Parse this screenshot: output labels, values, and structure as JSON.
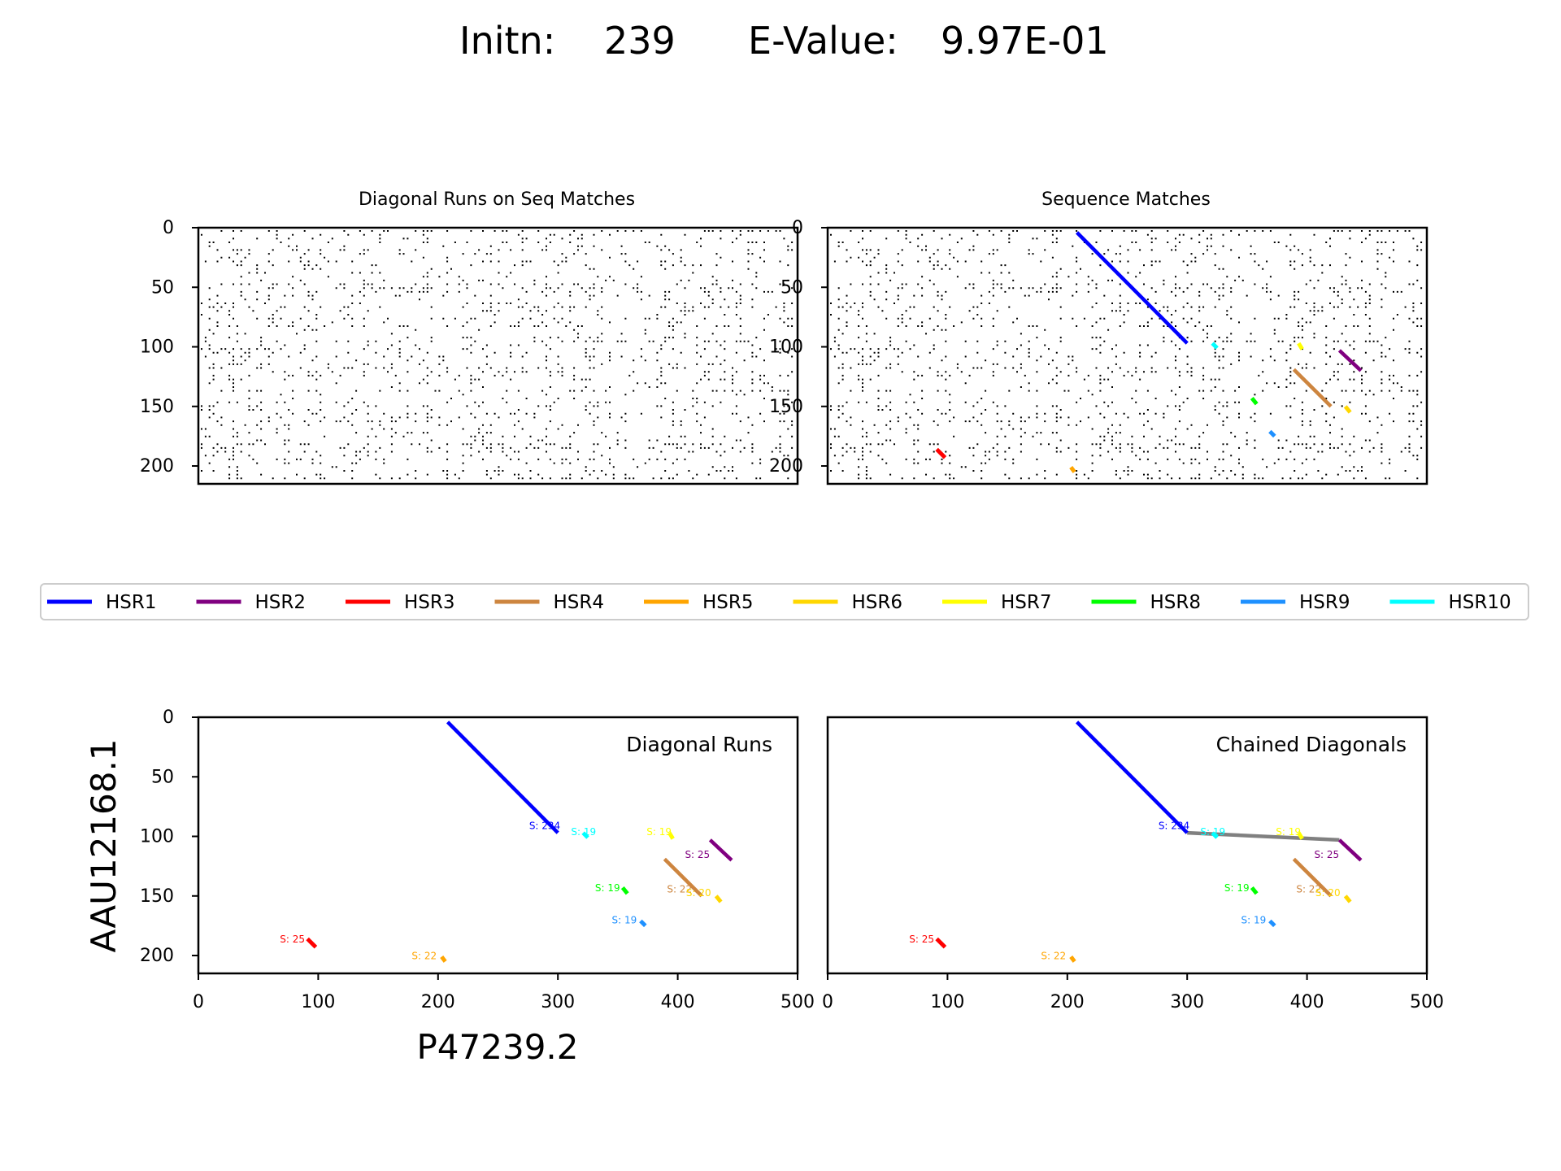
{
  "header": {
    "initn_label": "Initn:",
    "initn_value": "239",
    "evalue_label": "E-Value:",
    "evalue_value": "9.97E-01"
  },
  "colors": {
    "HSR1": "#0000ff",
    "HSR2": "#800080",
    "HSR3": "#ff0000",
    "HSR4": "#cd853f",
    "HSR5": "#ffa500",
    "HSR6": "#ffd700",
    "HSR7": "#ffff00",
    "HSR8": "#00ff00",
    "HSR9": "#1e90ff",
    "HSR10": "#00ffff",
    "chain": "#808080",
    "dots": "#000000"
  },
  "legend": [
    "HSR1",
    "HSR2",
    "HSR3",
    "HSR4",
    "HSR5",
    "HSR6",
    "HSR7",
    "HSR8",
    "HSR9",
    "HSR10"
  ],
  "chart_data": [
    {
      "id": "diag-on-seq",
      "type": "scatter",
      "title": "Diagonal Runs on Seq Matches",
      "xlim": [
        0,
        500
      ],
      "ylim": [
        215,
        0
      ],
      "yticks": [
        0,
        50,
        100,
        150,
        200
      ],
      "content": "dot matrix of sequence matches",
      "segments": []
    },
    {
      "id": "seq-matches",
      "type": "scatter",
      "title": "Sequence Matches",
      "xlim": [
        0,
        500
      ],
      "ylim": [
        215,
        0
      ],
      "yticks": [
        0,
        50,
        100,
        150,
        200
      ],
      "content": "dot matrix of sequence matches with HSR overlays",
      "segments": [
        {
          "name": "HSR1",
          "x1": 208,
          "y1": 4,
          "x2": 300,
          "y2": 97
        },
        {
          "name": "HSR2",
          "x1": 427,
          "y1": 103,
          "x2": 445,
          "y2": 120
        },
        {
          "name": "HSR3",
          "x1": 91,
          "y1": 186,
          "x2": 98,
          "y2": 193
        },
        {
          "name": "HSR4",
          "x1": 389,
          "y1": 119,
          "x2": 420,
          "y2": 150
        },
        {
          "name": "HSR5",
          "x1": 203,
          "y1": 201,
          "x2": 206,
          "y2": 205
        },
        {
          "name": "HSR6",
          "x1": 432,
          "y1": 150,
          "x2": 436,
          "y2": 155
        },
        {
          "name": "HSR7",
          "x1": 393,
          "y1": 97,
          "x2": 396,
          "y2": 102
        },
        {
          "name": "HSR8",
          "x1": 354,
          "y1": 143,
          "x2": 358,
          "y2": 148
        },
        {
          "name": "HSR9",
          "x1": 369,
          "y1": 171,
          "x2": 373,
          "y2": 175
        },
        {
          "name": "HSR10",
          "x1": 321,
          "y1": 97,
          "x2": 325,
          "y2": 101
        }
      ]
    },
    {
      "id": "diag-runs",
      "type": "line",
      "title": "Diagonal Runs",
      "xlabel": "P47239.2",
      "ylabel": "AAU12168.1",
      "xlim": [
        0,
        500
      ],
      "ylim": [
        215,
        0
      ],
      "xticks": [
        0,
        100,
        200,
        300,
        400,
        500
      ],
      "yticks": [
        0,
        50,
        100,
        150,
        200
      ],
      "segments": [
        {
          "name": "HSR1",
          "x1": 208,
          "y1": 4,
          "x2": 300,
          "y2": 97
        },
        {
          "name": "HSR2",
          "x1": 427,
          "y1": 103,
          "x2": 445,
          "y2": 120
        },
        {
          "name": "HSR3",
          "x1": 91,
          "y1": 186,
          "x2": 98,
          "y2": 193
        },
        {
          "name": "HSR4",
          "x1": 389,
          "y1": 119,
          "x2": 420,
          "y2": 150
        },
        {
          "name": "HSR5",
          "x1": 203,
          "y1": 201,
          "x2": 206,
          "y2": 205
        },
        {
          "name": "HSR6",
          "x1": 432,
          "y1": 150,
          "x2": 436,
          "y2": 155
        },
        {
          "name": "HSR7",
          "x1": 393,
          "y1": 97,
          "x2": 396,
          "y2": 102
        },
        {
          "name": "HSR8",
          "x1": 354,
          "y1": 143,
          "x2": 358,
          "y2": 148
        },
        {
          "name": "HSR9",
          "x1": 369,
          "y1": 171,
          "x2": 373,
          "y2": 175
        },
        {
          "name": "HSR10",
          "x1": 321,
          "y1": 97,
          "x2": 325,
          "y2": 101
        }
      ],
      "annotations": [
        {
          "text": "S: 234",
          "x": 276,
          "y": 94,
          "color": "#0000ff"
        },
        {
          "text": "S: 19",
          "x": 311,
          "y": 99,
          "color": "#00ffff"
        },
        {
          "text": "S: 19",
          "x": 374,
          "y": 99,
          "color": "#ffff00"
        },
        {
          "text": "S: 25",
          "x": 406,
          "y": 118,
          "color": "#800080"
        },
        {
          "text": "S: 19",
          "x": 331,
          "y": 146,
          "color": "#00ff00"
        },
        {
          "text": "S: 22",
          "x": 391,
          "y": 147,
          "color": "#cd853f"
        },
        {
          "text": "S: 20",
          "x": 407,
          "y": 150,
          "color": "#ffd700"
        },
        {
          "text": "S: 19",
          "x": 345,
          "y": 173,
          "color": "#1e90ff"
        },
        {
          "text": "S: 25",
          "x": 68,
          "y": 189,
          "color": "#ff0000"
        },
        {
          "text": "S: 22",
          "x": 178,
          "y": 203,
          "color": "#ffa500"
        }
      ]
    },
    {
      "id": "chained",
      "type": "line",
      "title": "Chained Diagonals",
      "xlim": [
        0,
        500
      ],
      "ylim": [
        215,
        0
      ],
      "xticks": [
        0,
        100,
        200,
        300,
        400,
        500
      ],
      "yticks": [],
      "segments": [
        {
          "name": "chain",
          "x1": 300,
          "y1": 97,
          "x2": 427,
          "y2": 103
        },
        {
          "name": "HSR1",
          "x1": 208,
          "y1": 4,
          "x2": 300,
          "y2": 97
        },
        {
          "name": "HSR2",
          "x1": 427,
          "y1": 103,
          "x2": 445,
          "y2": 120
        },
        {
          "name": "HSR3",
          "x1": 91,
          "y1": 186,
          "x2": 98,
          "y2": 193
        },
        {
          "name": "HSR4",
          "x1": 389,
          "y1": 119,
          "x2": 420,
          "y2": 150
        },
        {
          "name": "HSR5",
          "x1": 203,
          "y1": 201,
          "x2": 206,
          "y2": 205
        },
        {
          "name": "HSR6",
          "x1": 432,
          "y1": 150,
          "x2": 436,
          "y2": 155
        },
        {
          "name": "HSR7",
          "x1": 393,
          "y1": 97,
          "x2": 396,
          "y2": 102
        },
        {
          "name": "HSR8",
          "x1": 354,
          "y1": 143,
          "x2": 358,
          "y2": 148
        },
        {
          "name": "HSR9",
          "x1": 369,
          "y1": 171,
          "x2": 373,
          "y2": 175
        },
        {
          "name": "HSR10",
          "x1": 321,
          "y1": 97,
          "x2": 325,
          "y2": 101
        }
      ],
      "annotations": [
        {
          "text": "S: 234",
          "x": 276,
          "y": 94,
          "color": "#0000ff"
        },
        {
          "text": "S: 19",
          "x": 311,
          "y": 99,
          "color": "#00ffff"
        },
        {
          "text": "S: 19",
          "x": 374,
          "y": 99,
          "color": "#ffff00"
        },
        {
          "text": "S: 25",
          "x": 406,
          "y": 118,
          "color": "#800080"
        },
        {
          "text": "S: 19",
          "x": 331,
          "y": 146,
          "color": "#00ff00"
        },
        {
          "text": "S: 22",
          "x": 391,
          "y": 147,
          "color": "#cd853f"
        },
        {
          "text": "S: 20",
          "x": 407,
          "y": 150,
          "color": "#ffd700"
        },
        {
          "text": "S: 19",
          "x": 345,
          "y": 173,
          "color": "#1e90ff"
        },
        {
          "text": "S: 25",
          "x": 68,
          "y": 189,
          "color": "#ff0000"
        },
        {
          "text": "S: 22",
          "x": 178,
          "y": 203,
          "color": "#ffa500"
        }
      ]
    }
  ]
}
